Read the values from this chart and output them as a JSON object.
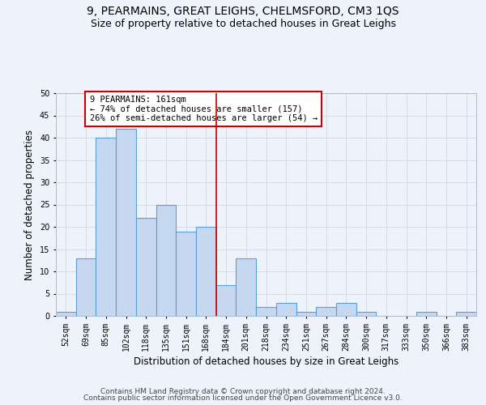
{
  "title1": "9, PEARMAINS, GREAT LEIGHS, CHELMSFORD, CM3 1QS",
  "title2": "Size of property relative to detached houses in Great Leighs",
  "xlabel": "Distribution of detached houses by size in Great Leighs",
  "ylabel": "Number of detached properties",
  "bins": [
    "52sqm",
    "69sqm",
    "85sqm",
    "102sqm",
    "118sqm",
    "135sqm",
    "151sqm",
    "168sqm",
    "184sqm",
    "201sqm",
    "218sqm",
    "234sqm",
    "251sqm",
    "267sqm",
    "284sqm",
    "300sqm",
    "317sqm",
    "333sqm",
    "350sqm",
    "366sqm",
    "383sqm"
  ],
  "values": [
    1,
    13,
    40,
    42,
    22,
    25,
    19,
    20,
    7,
    13,
    2,
    3,
    1,
    2,
    3,
    1,
    0,
    0,
    1,
    0,
    1
  ],
  "bar_color": "#c5d8f0",
  "bar_edge_color": "#5a9fd4",
  "bar_linewidth": 0.8,
  "vline_x": 7.5,
  "vline_color": "#cc0000",
  "annotation_line1": "9 PEARMAINS: 161sqm",
  "annotation_line2": "← 74% of detached houses are smaller (157)",
  "annotation_line3": "26% of semi-detached houses are larger (54) →",
  "annotation_box_color": "white",
  "annotation_box_edge": "#cc0000",
  "ylim": [
    0,
    50
  ],
  "yticks": [
    0,
    5,
    10,
    15,
    20,
    25,
    30,
    35,
    40,
    45,
    50
  ],
  "footer1": "Contains HM Land Registry data © Crown copyright and database right 2024.",
  "footer2": "Contains public sector information licensed under the Open Government Licence v3.0.",
  "bg_color": "#eef2fb",
  "plot_bg_color": "#eef2fb",
  "grid_color": "#d0d8e8",
  "title1_fontsize": 10,
  "title2_fontsize": 9,
  "tick_fontsize": 7,
  "ylabel_fontsize": 8.5,
  "xlabel_fontsize": 8.5,
  "footer_fontsize": 6.5
}
